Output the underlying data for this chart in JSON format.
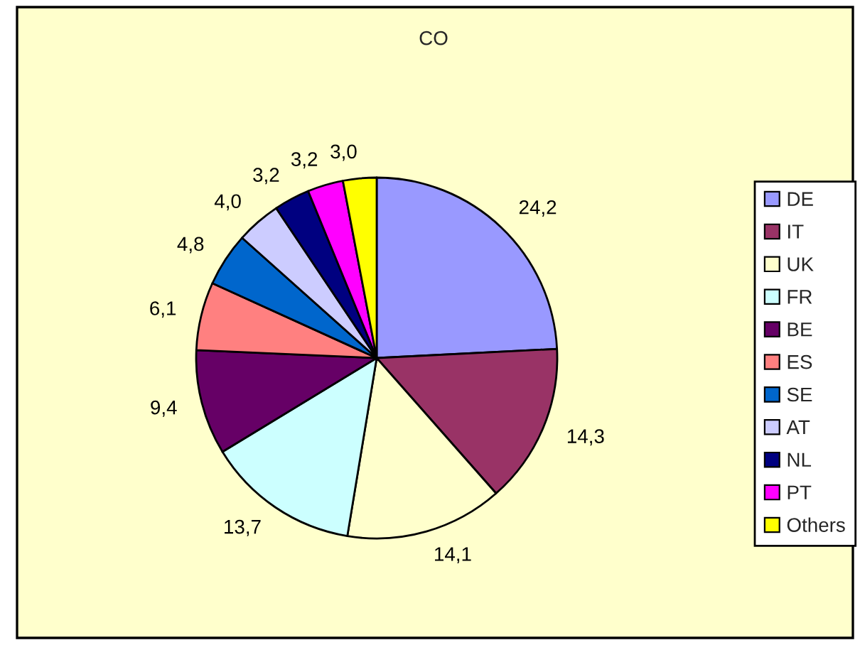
{
  "chart_data": {
    "type": "pie",
    "title": "CO",
    "categories": [
      "DE",
      "IT",
      "UK",
      "FR",
      "BE",
      "ES",
      "SE",
      "AT",
      "NL",
      "PT",
      "Others"
    ],
    "values": [
      24.2,
      14.3,
      14.1,
      13.7,
      9.4,
      6.1,
      4.8,
      4.0,
      3.2,
      3.2,
      3.0
    ],
    "colors": [
      "#9999ff",
      "#993366",
      "#ffffcc",
      "#ccffff",
      "#660066",
      "#ff8080",
      "#0066cc",
      "#ccccff",
      "#000080",
      "#ff00ff",
      "#ffff00"
    ],
    "value_labels": [
      "24,2",
      "14,3",
      "14,1",
      "13,7",
      "9,4",
      "6,1",
      "4,8",
      "4,0",
      "3,2",
      "3,2",
      "3,0"
    ],
    "legend": "right"
  }
}
